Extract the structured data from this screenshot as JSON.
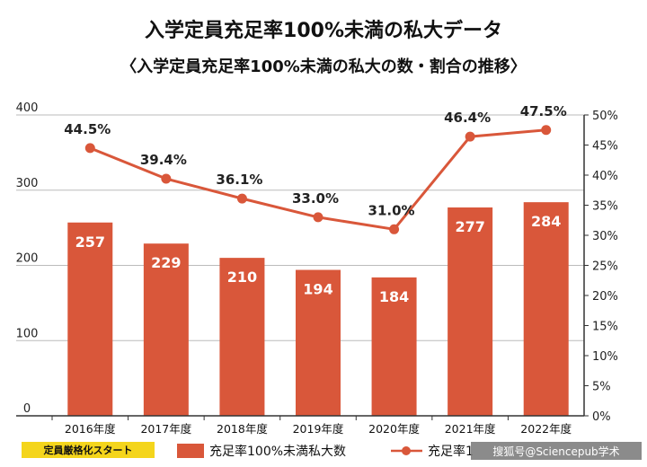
{
  "chart_data": {
    "type": "bar",
    "title": "入学定員充足率100%未満の私大データ",
    "subtitle": "〈入学定員充足率100%未満の私大の数・割合の推移〉",
    "categories": [
      "2016年度",
      "2017年度",
      "2018年度",
      "2019年度",
      "2020年度",
      "2021年度",
      "2022年度"
    ],
    "series": [
      {
        "name": "充足率100%未満私大数",
        "type": "bar",
        "axis": "left",
        "values": [
          257,
          229,
          210,
          194,
          184,
          277,
          284
        ],
        "labels": [
          "257",
          "229",
          "210",
          "194",
          "184",
          "277",
          "284"
        ]
      },
      {
        "name": "充足率1",
        "type": "line",
        "axis": "right",
        "values": [
          44.5,
          39.4,
          36.1,
          33.0,
          31.0,
          46.4,
          47.5
        ],
        "labels": [
          "44.5%",
          "39.4%",
          "36.1%",
          "33.0%",
          "31.0%",
          "46.4%",
          "47.5%"
        ]
      }
    ],
    "y_left": {
      "ylim": [
        0,
        400
      ],
      "ticks": [
        "0",
        "100",
        "200",
        "300",
        "400"
      ]
    },
    "y_right": {
      "ylim": [
        0,
        50
      ],
      "ticks": [
        "0%",
        "5%",
        "10%",
        "15%",
        "20%",
        "25%",
        "30%",
        "35%",
        "40%",
        "45%",
        "50%"
      ]
    },
    "grid": true,
    "legend_position": "bottom",
    "annotation": "定員厳格化スタート",
    "watermark": "搜狐号@Sciencepub学术",
    "colors": {
      "bar": "#d9573a",
      "line": "#d9573a",
      "grid": "#bbbbbb",
      "badge": "#f4d51c",
      "axis": "#333333"
    }
  }
}
